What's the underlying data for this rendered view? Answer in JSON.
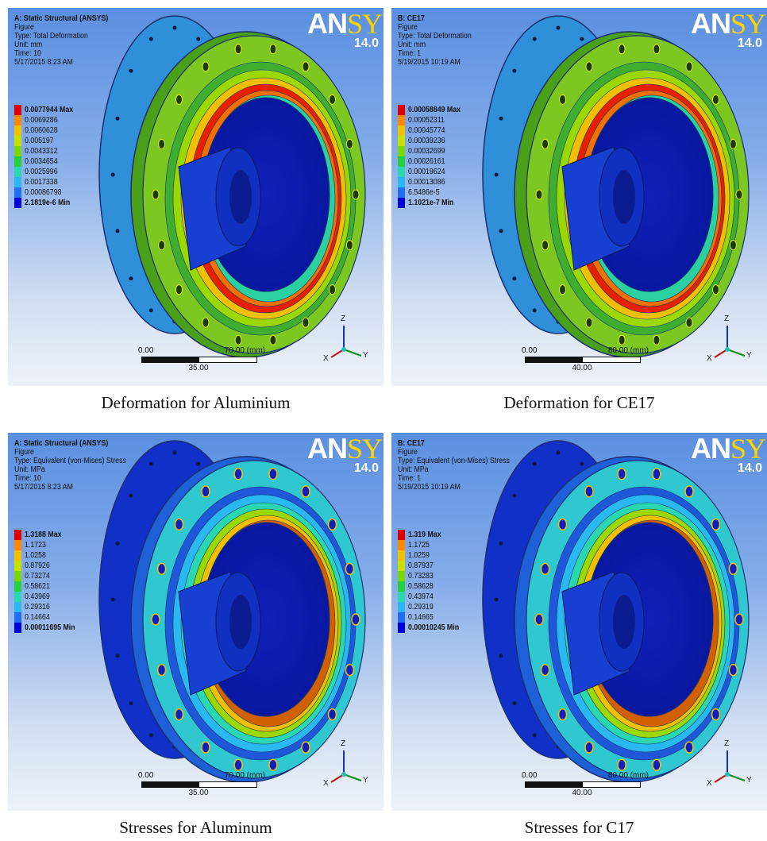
{
  "panels": [
    {
      "title": "A: Static Structural (ANSYS)",
      "lines": [
        "Figure",
        "Type: Total Deformation",
        "Unit: mm",
        "Time: 10",
        "5/17/2015 8:23 AM"
      ],
      "logo": {
        "name_left": "AN",
        "name_right": "SYS",
        "version": "14.0"
      },
      "legend": [
        "0.0077944 Max",
        "0.0069286",
        "0.0060628",
        "0.005197",
        "0.0043312",
        "0.0034654",
        "0.0025996",
        "0.0017338",
        "0.00086798",
        "2.1819e-6 Min"
      ],
      "scale": {
        "left": "0.00",
        "right": "70.00 (mm)",
        "mid": "35.00"
      },
      "axes": {
        "z": "Z",
        "y": "Y",
        "x": "X"
      },
      "part": "deformation"
    },
    {
      "title": "B: CE17",
      "lines": [
        "Figure",
        "Type: Total Deformation",
        "Unit: mm",
        "Time: 1",
        "5/19/2015 10:19 AM"
      ],
      "logo": {
        "name_left": "AN",
        "name_right": "SYS",
        "version": "14.0"
      },
      "legend": [
        "0.00058849 Max",
        "0.00052311",
        "0.00045774",
        "0.00039236",
        "0.00032699",
        "0.00026161",
        "0.00019624",
        "0.00013086",
        "6.5486e-5",
        "1.1021e-7 Min"
      ],
      "scale": {
        "left": "0.00",
        "right": "80.00 (mm)",
        "mid": "40.00"
      },
      "axes": {
        "z": "Z",
        "y": "Y",
        "x": "X"
      },
      "part": "deformation"
    },
    {
      "title": "A: Static Structural (ANSYS)",
      "lines": [
        "Figure",
        "Type: Equivalent (von-Mises) Stress",
        "Unit: MPa",
        "Time: 10",
        "5/17/2015 8:23 AM"
      ],
      "logo": {
        "name_left": "AN",
        "name_right": "SYS",
        "version": "14.0"
      },
      "legend": [
        "1.3188 Max",
        "1.1723",
        "1.0258",
        "0.87926",
        "0.73274",
        "0.58621",
        "0.43969",
        "0.29316",
        "0.14664",
        "0.00011695 Min"
      ],
      "scale": {
        "left": "0.00",
        "right": "70.00 (mm)",
        "mid": "35.00"
      },
      "axes": {
        "z": "Z",
        "y": "Y",
        "x": "X"
      },
      "part": "stress"
    },
    {
      "title": "B: CE17",
      "lines": [
        "Figure",
        "Type: Equivalent (von-Mises) Stress",
        "Unit: MPa",
        "Time: 1",
        "5/19/2015 10:19 AM"
      ],
      "logo": {
        "name_left": "AN",
        "name_right": "SYS",
        "version": "14.0"
      },
      "legend": [
        "1.319 Max",
        "1.1725",
        "1.0259",
        "0.87937",
        "0.73283",
        "0.58628",
        "0.43974",
        "0.29319",
        "0.14665",
        "0.00010245 Min"
      ],
      "scale": {
        "left": "0.00",
        "right": "80.00 (mm)",
        "mid": "40.00"
      },
      "axes": {
        "z": "Z",
        "y": "Y",
        "x": "X"
      },
      "part": "stress"
    }
  ],
  "captions": [
    "Deformation for Aluminium",
    "Deformation for CE17",
    "Stresses for Aluminum",
    "Stresses for C17"
  ],
  "legend_colors": [
    "#e00000",
    "#ff8a00",
    "#f2c200",
    "#c8e000",
    "#7ad800",
    "#22d040",
    "#2ad7b0",
    "#2ab8f0",
    "#1f6ef5",
    "#0000d8"
  ]
}
